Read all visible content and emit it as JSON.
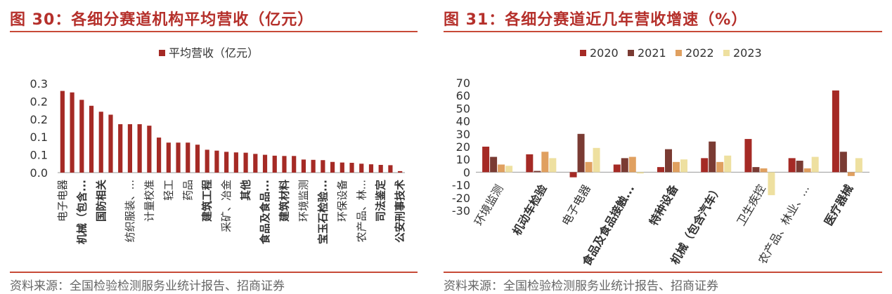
{
  "left_panel": {
    "figure_title": "图 30：各细分赛道机构平均营收（亿元）",
    "source": "资料来源：全国检验检测服务业统计报告、招商证券"
  },
  "right_panel": {
    "figure_title": "图 31：各细分赛道近几年营收增速（%）",
    "source": "资料来源：全国检验检测服务业统计报告、招商证券"
  },
  "colors": {
    "title": "#b5302b",
    "rule": "#c74a37",
    "s2020": "#a52a25",
    "s2021": "#7a3b33",
    "s2022": "#e0a060",
    "s2023": "#eee0a0"
  },
  "chart_data": [
    {
      "type": "bar",
      "title": "",
      "xlabel": "",
      "ylabel": "",
      "ylim": [
        0,
        0.3
      ],
      "y_ticks": [
        "0.0",
        "0.1",
        "0.1",
        "0.2",
        "0.2",
        "0.3"
      ],
      "legend": [
        "平均营收（亿元）"
      ],
      "legend_position": "top-center",
      "categories": [
        "电子电器",
        "",
        "机械（包含...",
        "",
        "国防相关",
        "",
        "",
        "纺织服装、...",
        "",
        "计量校准",
        "",
        "轻工",
        "",
        "药品",
        "",
        "建筑工程",
        "",
        "采矿、冶金",
        "",
        "其他",
        "",
        "食品及食品...",
        "",
        "建筑材料",
        "",
        "环境监测",
        "",
        "宝玉石检验...",
        "",
        "环保设备",
        "",
        "农产品、林...",
        "",
        "司法鉴定",
        "",
        "公安刑事技术"
      ],
      "series": [
        {
          "name": "平均营收（亿元）",
          "values": [
            0.275,
            0.27,
            0.245,
            0.225,
            0.205,
            0.195,
            0.163,
            0.163,
            0.163,
            0.158,
            0.118,
            0.101,
            0.101,
            0.101,
            0.094,
            0.077,
            0.074,
            0.07,
            0.068,
            0.067,
            0.063,
            0.06,
            0.057,
            0.056,
            0.056,
            0.044,
            0.043,
            0.042,
            0.036,
            0.034,
            0.033,
            0.03,
            0.028,
            0.026,
            0.025,
            0.005
          ]
        }
      ]
    },
    {
      "type": "bar",
      "title": "",
      "xlabel": "",
      "ylabel": "",
      "ylim": [
        -30,
        70
      ],
      "y_ticks": [
        "-30",
        "-20",
        "-10",
        "0",
        "10",
        "20",
        "30",
        "40",
        "50",
        "60",
        "70"
      ],
      "legend_position": "top-center",
      "categories": [
        "环境监测",
        "机动车检验",
        "电子电器",
        "食品及食品接触...",
        "特种设备",
        "机械（包含汽车）",
        "卫生疾控",
        "农产品、林业、...",
        "医疗器械"
      ],
      "series": [
        {
          "name": "2020",
          "values": [
            20,
            14,
            -4,
            6,
            4,
            11,
            26,
            11,
            64
          ]
        },
        {
          "name": "2021",
          "values": [
            12,
            1,
            30,
            11,
            18,
            24,
            4,
            9,
            16
          ]
        },
        {
          "name": "2022",
          "values": [
            6,
            16,
            8,
            12,
            8,
            8,
            3,
            3,
            -3
          ]
        },
        {
          "name": "2023",
          "values": [
            5,
            11,
            19,
            -1,
            10,
            13,
            -18,
            12,
            11
          ]
        }
      ]
    }
  ]
}
